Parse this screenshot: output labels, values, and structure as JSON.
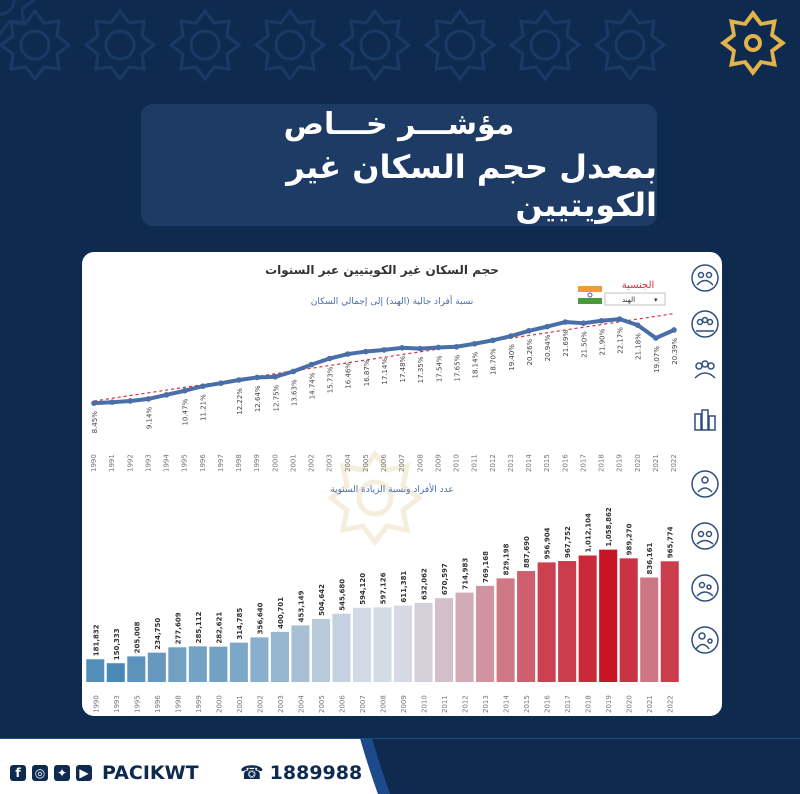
{
  "header": {
    "title_line1": "مؤشـــر خـــاص",
    "title_line2": "بمعدل حجم السكان غير الكويتيين"
  },
  "card": {
    "title": "حجم السكان غير الكويتيين عبر السنوات",
    "filter_label": "الجنسية",
    "filter_value": "الهند",
    "line_subtitle": "نسبة أفراد جالية (الهند) إلى إجمالي السكان",
    "bar_subtitle": "عدد الأفراد ونسبة الزيادة السنوية"
  },
  "footer": {
    "handle": "PACIKWT",
    "phone": "1889988"
  },
  "colors": {
    "background": "#0f2a4f",
    "title_box": "#1d3b64",
    "line": "#4a6fa8",
    "trend": "#d9323c",
    "bar_low": "#4a89b6",
    "bar_mid": "#d5dce6",
    "bar_high": "#c81425"
  },
  "chart_data": [
    {
      "type": "line",
      "x": [
        "1990",
        "1991",
        "1992",
        "1993",
        "1994",
        "1995",
        "1996",
        "1997",
        "1998",
        "1999",
        "2000",
        "2001",
        "2002",
        "2003",
        "2004",
        "2005",
        "2006",
        "2007",
        "2008",
        "2009",
        "2010",
        "2011",
        "2012",
        "2013",
        "2014",
        "2015",
        "2016",
        "2017",
        "2018",
        "2019",
        "2020",
        "2021",
        "2022"
      ],
      "labeled_years": [
        "1990",
        "1993",
        "1995",
        "1996",
        "1998",
        "1999",
        "2000",
        "2001",
        "2002",
        "2003",
        "2004",
        "2005",
        "2006",
        "2007",
        "2008",
        "2009",
        "2010",
        "2011",
        "2012",
        "2013",
        "2014",
        "2015",
        "2016",
        "2017",
        "2018",
        "2019",
        "2020",
        "2021",
        "2022"
      ],
      "values": [
        8.45,
        8.6,
        8.8,
        9.14,
        9.8,
        10.47,
        11.21,
        11.7,
        12.22,
        12.64,
        12.75,
        13.63,
        14.74,
        15.73,
        16.46,
        16.87,
        17.14,
        17.48,
        17.35,
        17.54,
        17.65,
        18.14,
        18.7,
        19.4,
        20.26,
        20.94,
        21.69,
        21.5,
        21.9,
        22.17,
        21.18,
        19.07,
        20.39
      ],
      "value_labels": [
        "8.45%",
        "",
        "",
        "9.14%",
        "",
        "10.47%",
        "11.21%",
        "",
        "12.22%",
        "12.64%",
        "12.75%",
        "13.63%",
        "14.74%",
        "15.73%",
        "16.46%",
        "16.87%",
        "17.14%",
        "17.48%",
        "17.35%",
        "17.54%",
        "17.65%",
        "18.14%",
        "18.70%",
        "19.40%",
        "20.26%",
        "20.94%",
        "21.69%",
        "21.50%",
        "21.90%",
        "22.17%",
        "21.18%",
        "19.07%",
        "20.39%"
      ],
      "trendline": true,
      "ylim": [
        7,
        23
      ]
    },
    {
      "type": "bar",
      "categories": [
        "1990",
        "1993",
        "1995",
        "1996",
        "1998",
        "1999",
        "2000",
        "2001",
        "2002",
        "2003",
        "2004",
        "2005",
        "2006",
        "2007",
        "2008",
        "2009",
        "2010",
        "2011",
        "2012",
        "2013",
        "2014",
        "2015",
        "2016",
        "2017",
        "2018",
        "2019",
        "2020",
        "2021",
        "2022"
      ],
      "values": [
        181832,
        150333,
        205008,
        234750,
        277609,
        285112,
        282621,
        314785,
        356640,
        400701,
        453149,
        504642,
        545680,
        594120,
        597126,
        611381,
        632062,
        670597,
        714983,
        769168,
        829198,
        887690,
        956904,
        967752,
        1012104,
        1058862,
        989270,
        836161,
        965774
      ],
      "value_labels": [
        "181,832",
        "150,333",
        "205,008",
        "234,750",
        "277,609",
        "285,112",
        "282,621",
        "314,785",
        "356,640",
        "400,701",
        "453,149",
        "504,642",
        "545,680",
        "594,120",
        "597,126",
        "611,381",
        "632,062",
        "670,597",
        "714,983",
        "769,168",
        "829,198",
        "887,690",
        "956,904",
        "967,752",
        "1,012,104",
        "1,058,862",
        "989,270",
        "836,161",
        "965,774"
      ],
      "ylim": [
        0,
        1120000
      ]
    }
  ]
}
